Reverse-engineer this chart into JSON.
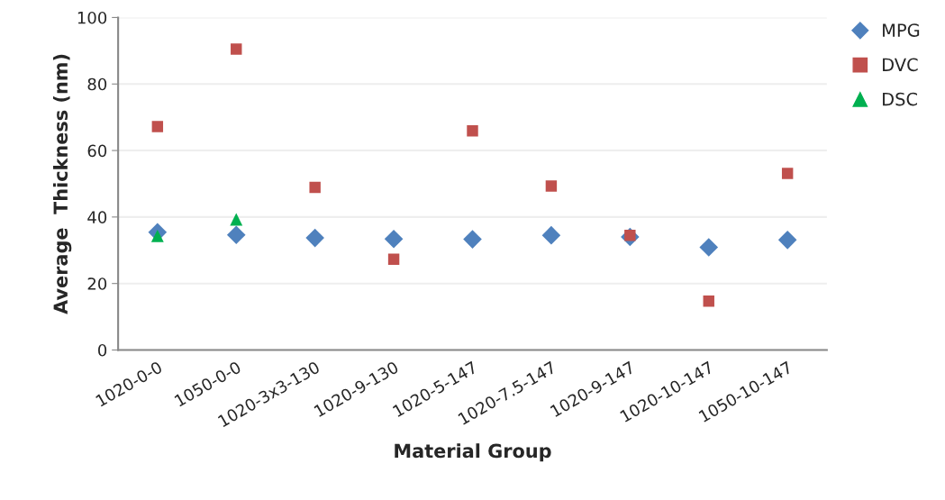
{
  "chart_data": {
    "type": "scatter",
    "xlabel": "Material Group",
    "ylabel": "Average  Thickness (nm)",
    "categories": [
      "1020-0-0",
      "1050-0-0",
      "1020-3x3-130",
      "1020-9-130",
      "1020-5-147",
      "1020-7.5-147",
      "1020-9-147",
      "1020-10-147",
      "1050-10-147"
    ],
    "series": [
      {
        "name": "MPG",
        "color": "#4f81bd",
        "marker": "diamond",
        "values": [
          35.4,
          34.6,
          33.7,
          33.4,
          33.3,
          34.5,
          34.0,
          30.9,
          33.1
        ]
      },
      {
        "name": "DVC",
        "color": "#c0504d",
        "marker": "square",
        "values": [
          67.2,
          90.5,
          48.9,
          27.3,
          65.9,
          49.3,
          34.5,
          14.7,
          53.1
        ]
      },
      {
        "name": "DSC",
        "color": "#00b050",
        "marker": "triangle",
        "values": [
          34.3,
          39.3,
          null,
          null,
          null,
          null,
          null,
          null,
          null
        ]
      }
    ],
    "ylim": [
      0,
      100
    ],
    "yticks": [
      0,
      20,
      40,
      60,
      80,
      100
    ],
    "grid": "y",
    "legend": "top right"
  }
}
